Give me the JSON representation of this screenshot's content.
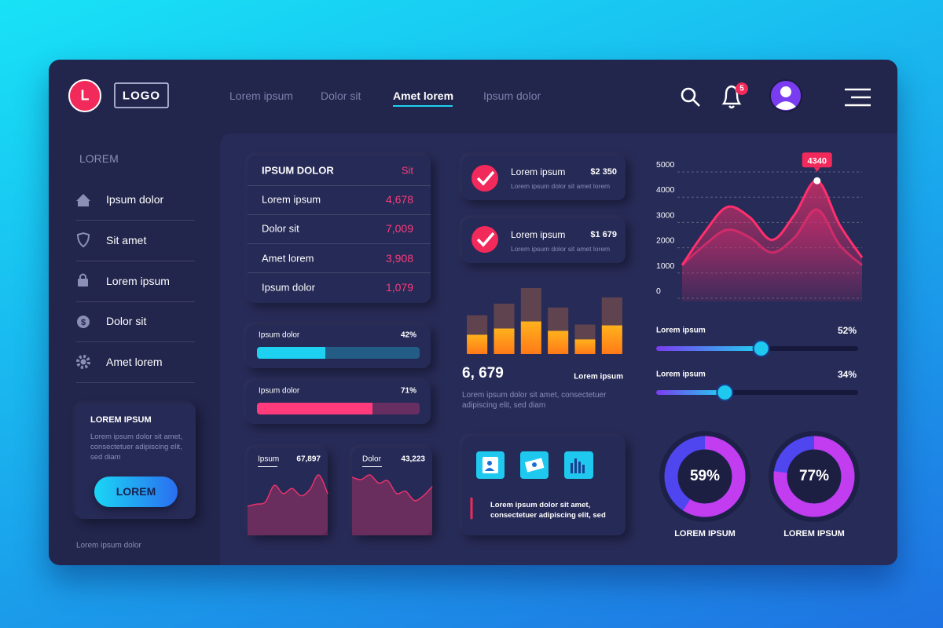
{
  "nav": {
    "logo_mark": "L",
    "logo": "LOGO",
    "links": [
      "Lorem ipsum",
      "Dolor sit",
      "Amet lorem",
      "Ipsum dolor"
    ],
    "active_link": 2,
    "badge": "5"
  },
  "sidebar": {
    "heading": "LOREM",
    "items": [
      "Ipsum dolor",
      "Sit amet",
      "Lorem ipsum",
      "Dolor sit",
      "Amet lorem"
    ],
    "card": {
      "title": "LOREM IPSUM",
      "text": "Lorem ipsum dolor sit amet, consectetuer adipiscing elit, sed diam",
      "button": "LOREM"
    },
    "footer": "Lorem ipsum dolor"
  },
  "table": {
    "header": [
      "IPSUM DOLOR",
      "Sit"
    ],
    "rows": [
      [
        "Lorem ipsum",
        "4,678"
      ],
      [
        "Dolor sit",
        "7,009"
      ],
      [
        "Amet lorem",
        "3,908"
      ],
      [
        "Ipsum dolor",
        "1,079"
      ]
    ]
  },
  "progress": [
    {
      "label": "Ipsum dolor",
      "value": 42,
      "value_label": "42%",
      "color": "#1fd1f0"
    },
    {
      "label": "Ipsum dolor",
      "value": 71,
      "value_label": "71%",
      "color": "#ff3b7c"
    }
  ],
  "transactions": [
    {
      "title": "Lorem ipsum",
      "amount": "$2 350",
      "note": "Lorem ipsum dolor sit amet lorem"
    },
    {
      "title": "Lorem ipsum",
      "amount": "$1 679",
      "note": "Lorem ipsum dolor sit amet lorem"
    }
  ],
  "summary": {
    "value": "6, 679",
    "label": "Lorem ipsum",
    "text": "Lorem ipsum dolor sit amet, consectetuer adipiscing elit, sed diam"
  },
  "info_card": {
    "text": "Lorem ipsum dolor sit amet, consectetuer adipiscing elit, sed"
  },
  "sliders": [
    {
      "label": "Lorem ipsum",
      "value": 52,
      "value_label": "52%"
    },
    {
      "label": "Lorem ipsum",
      "value": 34,
      "value_label": "34%"
    }
  ],
  "chart_data": [
    {
      "type": "bar",
      "stacked": true,
      "series": [
        {
          "color": "#ff9a1a",
          "values": [
            25,
            33,
            42,
            30,
            19,
            37
          ]
        },
        {
          "color": "#5f4450",
          "values": [
            25,
            32,
            43,
            30,
            19,
            36
          ]
        }
      ]
    },
    {
      "type": "area",
      "ylim": [
        0,
        5000
      ],
      "yticks": [
        0,
        1000,
        2000,
        3000,
        4000,
        5000
      ],
      "grid": true,
      "annotation": "4340",
      "series": [
        {
          "color": "#ff2f6d",
          "values": [
            1000,
            2300,
            3300,
            2900,
            2000,
            3000,
            4340,
            2600,
            1300
          ]
        },
        {
          "color": "#b02a66",
          "values": [
            1000,
            1800,
            2400,
            2100,
            1500,
            2100,
            3200,
            1800,
            1000
          ]
        }
      ]
    },
    {
      "type": "area",
      "title": "Ipsum",
      "total": "67,897",
      "color": "#e8336c",
      "values": [
        28,
        30,
        32,
        48,
        40,
        45,
        38,
        44,
        58,
        40
      ]
    },
    {
      "type": "area",
      "title": "Dolor",
      "total": "43,223",
      "color": "#e8336c",
      "values": [
        50,
        48,
        52,
        45,
        47,
        36,
        38,
        30,
        34,
        42
      ]
    },
    {
      "type": "donut",
      "title": "LOREM IPSUM",
      "values": [
        59
      ],
      "value_labels": [
        "59%"
      ],
      "colors": [
        "#4f46f0",
        "#c23cf0"
      ]
    },
    {
      "type": "donut",
      "title": "LOREM IPSUM",
      "values": [
        77
      ],
      "value_labels": [
        "77%"
      ],
      "colors": [
        "#4f46f0",
        "#c23cf0"
      ]
    }
  ]
}
